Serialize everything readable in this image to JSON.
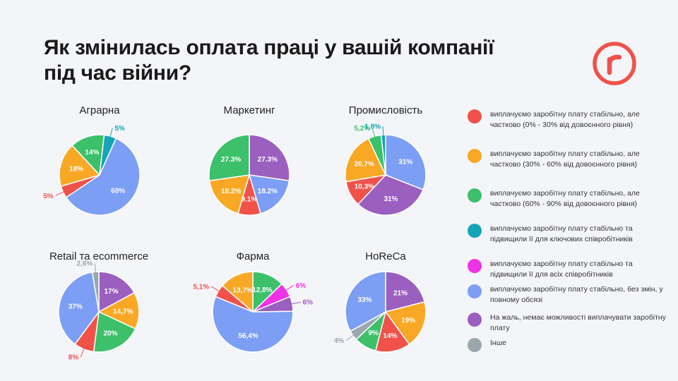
{
  "title": {
    "line1": "Як змінилась оплата праці у вашій компанії",
    "line2": "під час війни?"
  },
  "logo": {
    "icon": "r-logo-icon",
    "color": "#f0524a"
  },
  "legend": [
    {
      "label": "виплачуємо заробітну плату стабільно, але частково (0% - 30% від довоєнного рівня)",
      "color": "#f0524a"
    },
    {
      "label": "виплачуємо заробітну плату стабільно, але частково (30% - 60% від довоєнного рівня)",
      "color": "#f9a825"
    },
    {
      "label": "виплачуємо заробітну плату стабільно, але частково (60% - 90% від довоєнного рівня)",
      "color": "#3cc06a"
    },
    {
      "label": "виплачуємо заробітну плату стабільно та підвищили її для ключових співробітників",
      "color": "#17a3b8"
    },
    {
      "label": "виплачуємо заробітну плату стабільно та підвищили її для всіх співробітників",
      "color": "#f032e6"
    },
    {
      "label": "виплачуємо заробітну плату стабільно, без змін, у повному обсязі",
      "color": "#7c9ef5"
    },
    {
      "label": "На жаль, немає можливості виплачувати заробітну плату",
      "color": "#9b5fc0"
    },
    {
      "label": "Інше",
      "color": "#9aa7ad"
    }
  ],
  "chart_data": [
    {
      "type": "pie",
      "title": "Аграрна",
      "slices": [
        {
          "key": "cut30",
          "value": 5,
          "label": "5%"
        },
        {
          "key": "cut60",
          "value": 18,
          "label": "18%"
        },
        {
          "key": "cut90",
          "value": 14,
          "label": "14%"
        },
        {
          "key": "raiseKey",
          "value": 5,
          "label": "5%"
        },
        {
          "key": "full",
          "value": 60,
          "label": "60%"
        }
      ]
    },
    {
      "type": "pie",
      "title": "Маркетинг",
      "slices": [
        {
          "key": "none",
          "value": 27.3,
          "label": "27.3%"
        },
        {
          "key": "full",
          "value": 18.2,
          "label": "18.2%"
        },
        {
          "key": "cut30",
          "value": 9.1,
          "label": "9.1%"
        },
        {
          "key": "cut60",
          "value": 18.2,
          "label": "18.2%"
        },
        {
          "key": "cut90",
          "value": 27.3,
          "label": "27.3%"
        }
      ]
    },
    {
      "type": "pie",
      "title": "Промисловість",
      "slices": [
        {
          "key": "full",
          "value": 31,
          "label": "31%"
        },
        {
          "key": "none",
          "value": 31,
          "label": "31%"
        },
        {
          "key": "cut30",
          "value": 10.3,
          "label": "10,3%"
        },
        {
          "key": "cut60",
          "value": 20.7,
          "label": "20,7%"
        },
        {
          "key": "cut90",
          "value": 5.2,
          "label": "5,2%"
        },
        {
          "key": "raiseKey",
          "value": 1.8,
          "label": "1,8%"
        }
      ]
    },
    {
      "type": "pie",
      "title": "Retail та ecommerce",
      "slices": [
        {
          "key": "none",
          "value": 17,
          "label": "17%"
        },
        {
          "key": "cut60",
          "value": 14.7,
          "label": "14,7%"
        },
        {
          "key": "cut90",
          "value": 20,
          "label": "20%"
        },
        {
          "key": "cut30",
          "value": 8,
          "label": "8%"
        },
        {
          "key": "full",
          "value": 37,
          "label": "37%"
        },
        {
          "key": "other",
          "value": 2.6,
          "label": "2,6%"
        }
      ]
    },
    {
      "type": "pie",
      "title": "Фарма",
      "slices": [
        {
          "key": "cut90",
          "value": 12.8,
          "label": "12,8%"
        },
        {
          "key": "raiseAll",
          "value": 6,
          "label": "6%"
        },
        {
          "key": "none",
          "value": 6,
          "label": "6%"
        },
        {
          "key": "full",
          "value": 56.4,
          "label": "56,4%"
        },
        {
          "key": "cut30",
          "value": 5.1,
          "label": "5,1%"
        },
        {
          "key": "cut60",
          "value": 13.7,
          "label": "13,7%"
        }
      ]
    },
    {
      "type": "pie",
      "title": "HoReCa",
      "slices": [
        {
          "key": "none",
          "value": 21,
          "label": "21%"
        },
        {
          "key": "cut60",
          "value": 19,
          "label": "19%"
        },
        {
          "key": "cut30",
          "value": 14,
          "label": "14%"
        },
        {
          "key": "cut90",
          "value": 9,
          "label": "9%"
        },
        {
          "key": "other",
          "value": 4,
          "label": "4%"
        },
        {
          "key": "full",
          "value": 33,
          "label": "33%"
        }
      ]
    }
  ]
}
